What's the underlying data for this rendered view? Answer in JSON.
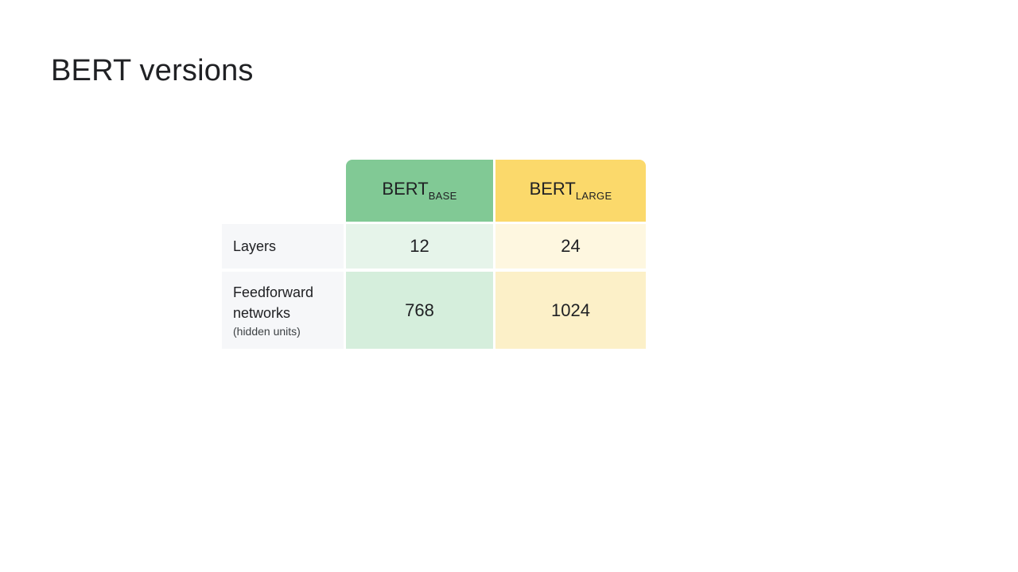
{
  "slide": {
    "title": "BERT versions"
  },
  "table": {
    "columns": [
      {
        "name": "BERT",
        "subscript": "BASE",
        "color": "#81c995"
      },
      {
        "name": "BERT",
        "subscript": "LARGE",
        "color": "#fbd96b"
      }
    ],
    "rows": [
      {
        "label": "Layers",
        "values": [
          "12",
          "24"
        ]
      },
      {
        "label_line1": "Feedforward",
        "label_line2": "networks",
        "label_note": "(hidden units)",
        "values": [
          "768",
          "1024"
        ]
      }
    ]
  }
}
